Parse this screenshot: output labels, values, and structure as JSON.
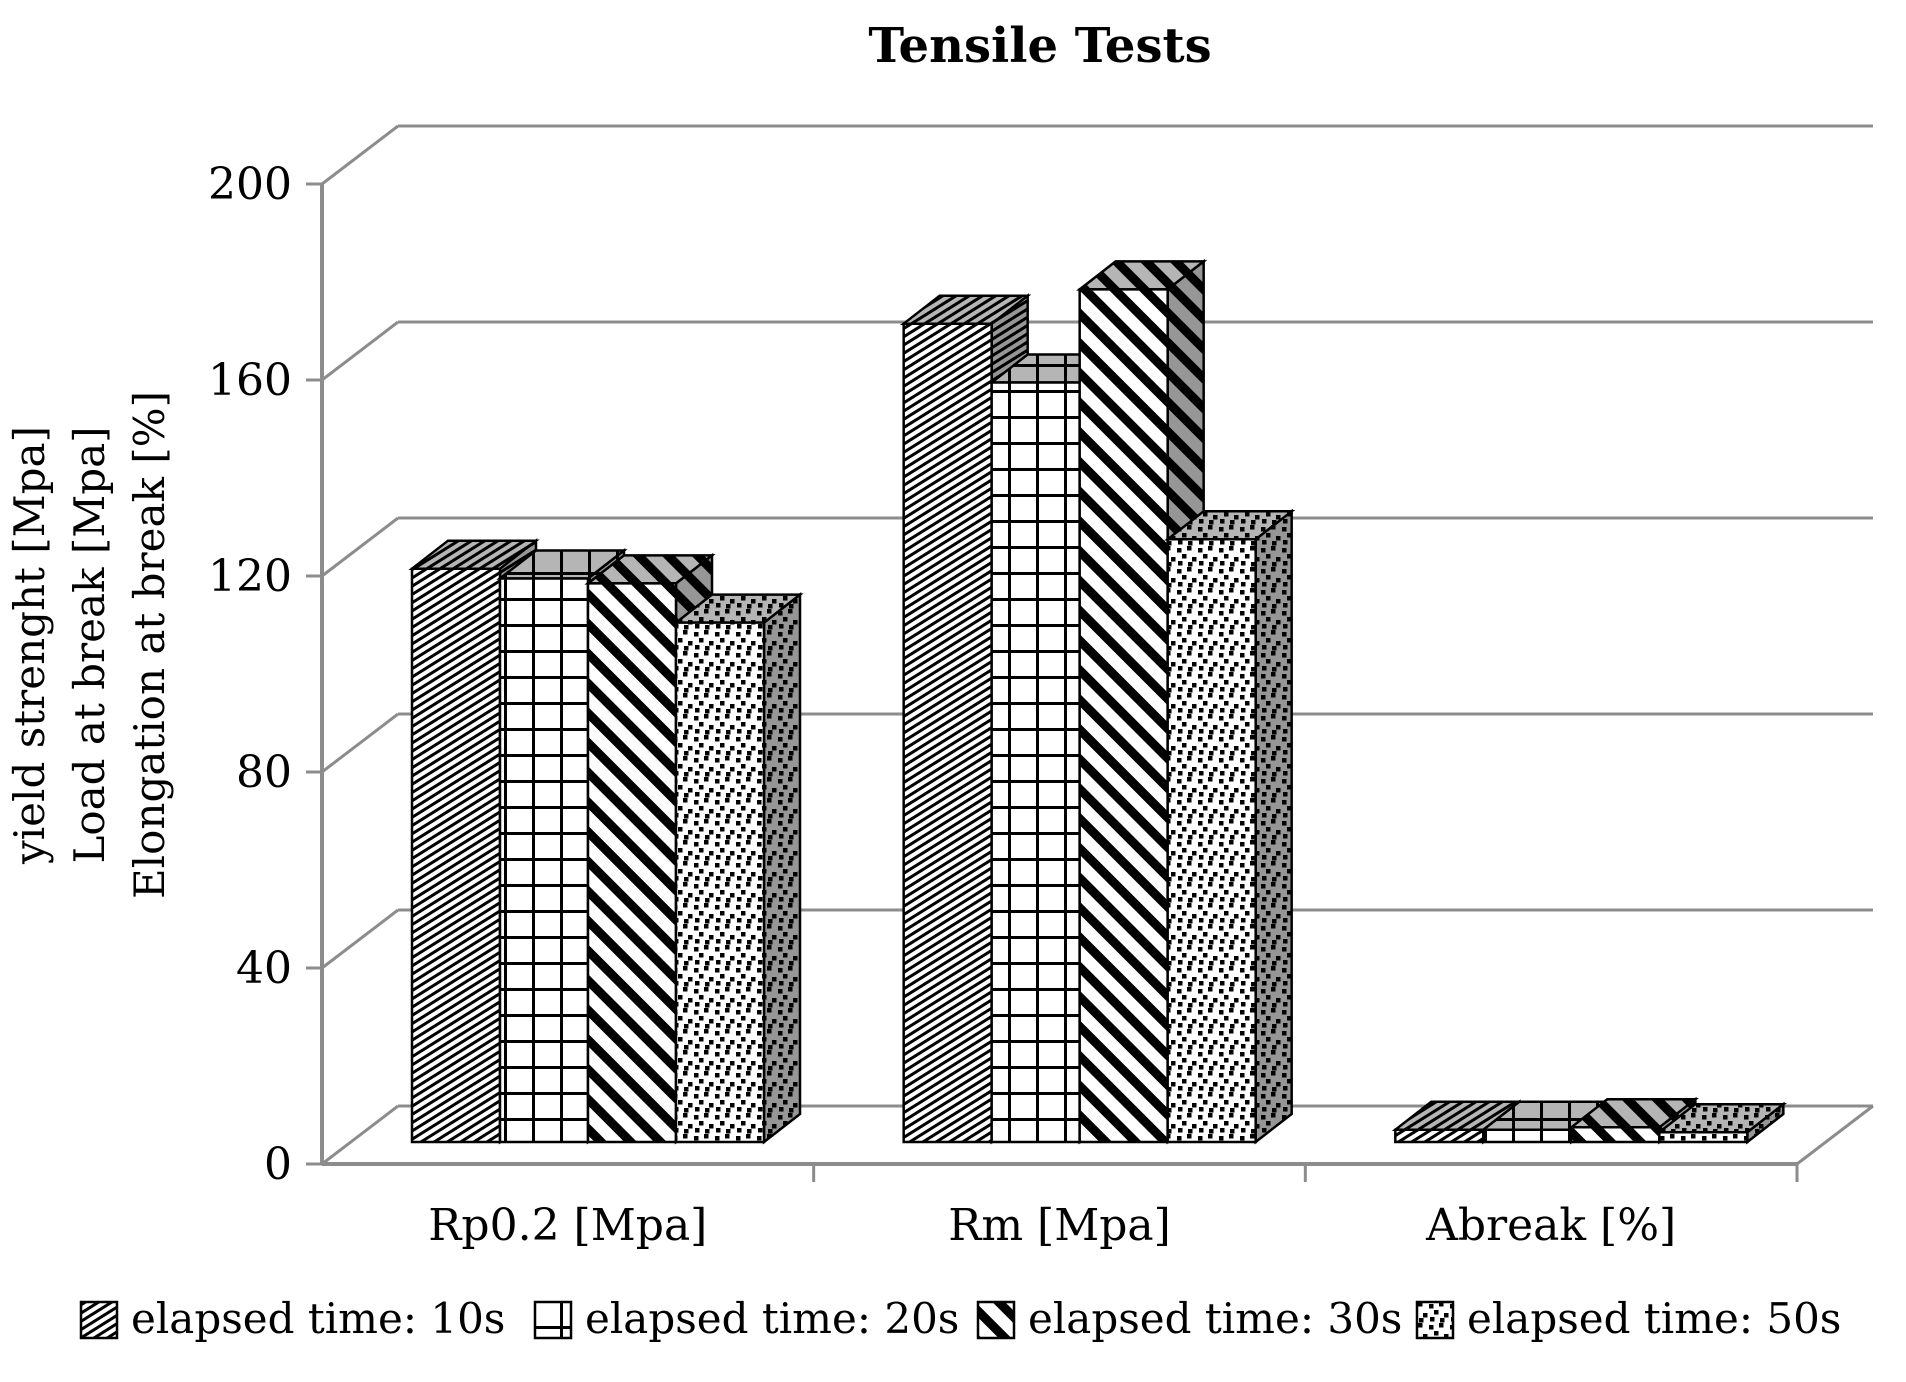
{
  "title": "Tensile Tests",
  "chart_data": {
    "type": "bar",
    "projection": "3d",
    "title": "Tensile Tests",
    "categories": [
      "Rp0.2 [Mpa]",
      "Rm [Mpa]",
      "Abreak [%]"
    ],
    "series": [
      {
        "name": "elapsed time: 10s",
        "pattern": "thin-diagonal",
        "values": [
          117,
          167,
          2.5
        ]
      },
      {
        "name": "elapsed time: 20s",
        "pattern": "grid",
        "values": [
          115,
          155,
          2.5
        ]
      },
      {
        "name": "elapsed time: 30s",
        "pattern": "bold-diagonal",
        "values": [
          114,
          174,
          3
        ]
      },
      {
        "name": "elapsed time: 50s",
        "pattern": "speckle",
        "values": [
          106,
          123,
          2
        ]
      }
    ],
    "ylabel_lines": [
      "yield strenght [Mpa]",
      "Load at break [Mpa]",
      "Elongation at break [%]"
    ],
    "ylim": [
      0,
      200
    ],
    "yticks": [
      0,
      40,
      80,
      120,
      160,
      200
    ],
    "ytick_labels": [
      "0",
      "40",
      "80",
      "120",
      "160",
      "200"
    ],
    "grid": true,
    "legend_position": "bottom",
    "legend_labels": [
      "elapsed time: 10s",
      "elapsed time: 20s",
      "elapsed time: 30s",
      "elapsed time: 50s"
    ]
  },
  "colors": {
    "background": "#ffffff",
    "text": "#000000",
    "axis_gray": "#8c8c8c",
    "bar_outline": "#000000",
    "bar_front_bg": "#ffffff",
    "bar_top_bg": "#b5b5b5",
    "bar_side_bg": "#969696",
    "pattern_ink": "#000000"
  }
}
